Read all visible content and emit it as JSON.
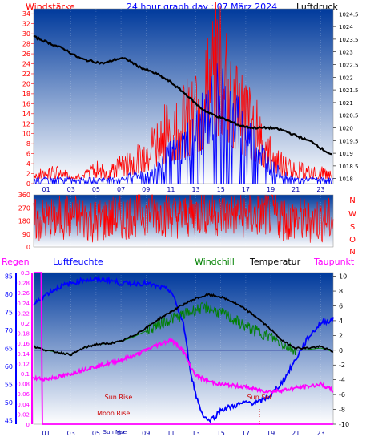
{
  "header": {
    "left_label": "Windstärke",
    "title": "24 hour graph day : 07 März 2024",
    "right_label": "Luftdruck"
  },
  "legend": {
    "regen": "Regen",
    "luftfeuchte": "Luftfeuchte",
    "windchill": "Windchill",
    "temperatur": "Temperatur",
    "taupunkt": "Taupunkt"
  },
  "colors": {
    "wind": "#ff0000",
    "gust": "#0000ff",
    "pressure": "#000000",
    "humidity": "#0000ff",
    "windchill": "#008000",
    "temperature": "#000000",
    "dewpoint": "#ff00ff",
    "rain": "#ff00ff",
    "bg_top": "#003a9c",
    "bg_bottom": "#ffffff"
  },
  "chart_data": [
    {
      "id": "wind_pressure",
      "type": "line",
      "x_ticks": [
        "01",
        "03",
        "05",
        "07",
        "09",
        "11",
        "13",
        "15",
        "17",
        "19",
        "21",
        "23"
      ],
      "xlim": [
        0,
        24
      ],
      "left_axis": {
        "label": "Windstärke",
        "ticks": [
          0,
          2,
          4,
          6,
          8,
          10,
          12,
          14,
          16,
          18,
          20,
          22,
          24,
          26,
          28,
          30,
          32,
          34
        ],
        "ylim": [
          0,
          35
        ]
      },
      "right_axis": {
        "label": "Luftdruck",
        "ticks": [
          "1018",
          "1018.5",
          "1019",
          "1019.5",
          "1020",
          "1020.5",
          "1021",
          "1021.5",
          "1022",
          "1022.5",
          "1023",
          "1023.5",
          "1024",
          "1024.5"
        ],
        "ylim": [
          1017.8,
          1024.7
        ]
      },
      "series": [
        {
          "key": "pressure",
          "x": [
            0,
            0.5,
            1,
            1.5,
            2,
            2.5,
            3,
            3.5,
            4,
            4.5,
            5,
            5.5,
            6,
            6.5,
            7,
            7.5,
            8,
            8.5,
            9,
            9.5,
            10,
            10.5,
            11,
            11.5,
            12,
            12.5,
            13,
            13.5,
            14,
            14.5,
            15,
            15.5,
            16,
            16.5,
            17,
            17.5,
            18,
            18.5,
            19,
            19.5,
            20,
            20.5,
            21,
            21.5,
            22,
            22.5,
            23,
            23.5,
            24
          ],
          "y": [
            1023.6,
            1023.5,
            1023.4,
            1023.3,
            1023.2,
            1023.1,
            1022.95,
            1022.8,
            1022.7,
            1022.65,
            1022.6,
            1022.55,
            1022.6,
            1022.7,
            1022.75,
            1022.7,
            1022.55,
            1022.4,
            1022.3,
            1022.2,
            1022.1,
            1021.95,
            1021.8,
            1021.6,
            1021.4,
            1021.2,
            1020.95,
            1020.75,
            1020.6,
            1020.5,
            1020.4,
            1020.3,
            1020.2,
            1020.1,
            1020.05,
            1020,
            1020,
            1020,
            1020,
            1019.95,
            1019.9,
            1019.8,
            1019.7,
            1019.6,
            1019.5,
            1019.4,
            1019.2,
            1019.05,
            1018.9
          ]
        },
        {
          "key": "wind_average",
          "x": [
            0,
            1,
            2,
            3,
            4,
            5,
            6,
            7,
            8,
            9,
            10,
            11,
            12,
            13,
            14,
            15,
            16,
            17,
            18,
            19,
            20,
            21,
            22,
            23,
            24
          ],
          "y": [
            1,
            1,
            1,
            1,
            1,
            1,
            1,
            1,
            2,
            2,
            4,
            7,
            9,
            12,
            16,
            21,
            15,
            12,
            8,
            4,
            2,
            1,
            1,
            1,
            1
          ]
        },
        {
          "key": "wind_gust",
          "x": [
            0,
            1,
            2,
            3,
            4,
            5,
            6,
            7,
            8,
            9,
            10,
            11,
            12,
            13,
            14,
            15,
            16,
            17,
            18,
            19,
            20,
            21,
            22,
            23,
            24
          ],
          "y": [
            2,
            3,
            3,
            2,
            2,
            4,
            3,
            5,
            6,
            8,
            12,
            15,
            17,
            20,
            26,
            34,
            24,
            18,
            14,
            8,
            5,
            4,
            3,
            3,
            2
          ]
        }
      ]
    },
    {
      "id": "wind_direction",
      "type": "line",
      "y_ticks": [
        0,
        90,
        180,
        270,
        360
      ],
      "ylim": [
        0,
        360
      ],
      "right_letters": [
        "N",
        "W",
        "S",
        "O",
        "N"
      ],
      "series": [
        {
          "key": "direction",
          "x": [
            0,
            1,
            2,
            3,
            4,
            5,
            6,
            7,
            8,
            9,
            10,
            11,
            12,
            13,
            14,
            15,
            16,
            17,
            18,
            19,
            20,
            21,
            22,
            23,
            24
          ],
          "y": [
            180,
            180,
            200,
            210,
            200,
            180,
            190,
            200,
            220,
            240,
            230,
            220,
            210,
            230,
            240,
            220,
            230,
            210,
            220,
            230,
            200,
            190,
            180,
            190,
            180
          ]
        }
      ]
    },
    {
      "id": "temp_humidity",
      "type": "line",
      "x_ticks": [
        "01",
        "03",
        "05",
        "07",
        "09",
        "11",
        "13",
        "15",
        "17",
        "19",
        "21",
        "23"
      ],
      "xlim": [
        0,
        24
      ],
      "humidity_axis": {
        "label": "Luftfeuchte",
        "ticks": [
          45,
          50,
          55,
          60,
          65,
          70,
          75,
          80,
          85
        ],
        "ylim": [
          44,
          86
        ]
      },
      "rain_axis": {
        "label": "Regen",
        "ticks": [
          "0",
          "0.02",
          "0.04",
          "0.06",
          "0.08",
          "0.1",
          "0.12",
          "0.14",
          "0.16",
          "0.18",
          "0.2",
          "0.22",
          "0.24",
          "0.26",
          "0.28",
          "0.3"
        ],
        "ylim": [
          0,
          0.3
        ]
      },
      "temperature_axis": {
        "label": "Temperatur",
        "ticks": [
          -10,
          -8,
          -6,
          -4,
          -2,
          0,
          2,
          4,
          6,
          8,
          10
        ],
        "ylim": [
          -10,
          10.5
        ]
      },
      "annotations": [
        {
          "label": "Sun Rise",
          "x": 6.8
        },
        {
          "label": "Sun Set",
          "x": 18.1
        },
        {
          "label": "Moon Rise",
          "x": 6.4
        },
        {
          "label": "Sun Mse",
          "x": 6.5
        }
      ],
      "series": [
        {
          "key": "humidity",
          "x": [
            0,
            1,
            2,
            3,
            4,
            5,
            6,
            7,
            8,
            9,
            10,
            11,
            12,
            12.5,
            13,
            13.5,
            14,
            14.5,
            15,
            16,
            17,
            18,
            19,
            20,
            21,
            22,
            23,
            24
          ],
          "y": [
            77,
            80,
            82,
            83,
            84,
            84,
            84,
            83,
            83,
            83,
            82,
            81,
            72,
            60,
            52,
            47,
            45,
            46,
            48,
            49,
            50,
            50,
            52,
            56,
            62,
            68,
            72,
            73
          ]
        },
        {
          "key": "temperature",
          "x": [
            0,
            1,
            2,
            3,
            4,
            5,
            6,
            7,
            8,
            9,
            10,
            11,
            12,
            13,
            14,
            15,
            16,
            17,
            18,
            19,
            20,
            21,
            22,
            23,
            24
          ],
          "y": [
            0.5,
            0,
            -0.3,
            -0.6,
            0.3,
            0.8,
            0.9,
            1.2,
            2.0,
            3.0,
            4.2,
            5.2,
            6.2,
            7.0,
            7.5,
            7.2,
            6.5,
            5.5,
            4.3,
            2.8,
            1.2,
            0.3,
            0.3,
            0.5,
            -0.2
          ]
        },
        {
          "key": "windchill",
          "x": [
            0,
            1,
            2,
            3,
            4,
            5,
            6,
            7,
            8,
            9,
            10,
            11,
            12,
            13,
            14,
            15,
            16,
            17,
            18,
            19,
            20,
            21,
            22,
            23,
            24
          ],
          "y": [
            0.5,
            0,
            -0.3,
            -0.6,
            0.3,
            0.8,
            0.9,
            1.2,
            1.8,
            2.6,
            3.5,
            4.2,
            4.8,
            5.5,
            5.8,
            5.0,
            4.2,
            3.2,
            2.5,
            1.8,
            0.8,
            0,
            0.1,
            0.3,
            -0.2
          ]
        },
        {
          "key": "dewpoint",
          "x": [
            0,
            1,
            2,
            3,
            4,
            5,
            6,
            7,
            8,
            9,
            10,
            11,
            12,
            12.5,
            13,
            14,
            15,
            16,
            17,
            18,
            19,
            20,
            21,
            22,
            23,
            24
          ],
          "y": [
            -3.8,
            -3.9,
            -3.6,
            -3.2,
            -2.6,
            -2.2,
            -1.8,
            -1.3,
            -0.8,
            0,
            0.8,
            1.4,
            0,
            -2,
            -3.4,
            -4.2,
            -4.6,
            -4.8,
            -5,
            -5.4,
            -5.6,
            -5.4,
            -5.1,
            -4.9,
            -4.6,
            -5.5
          ]
        },
        {
          "key": "rain_total",
          "x": [
            0,
            0.6,
            0.7,
            24
          ],
          "y": [
            0.3,
            0.3,
            0,
            0
          ]
        }
      ]
    }
  ]
}
